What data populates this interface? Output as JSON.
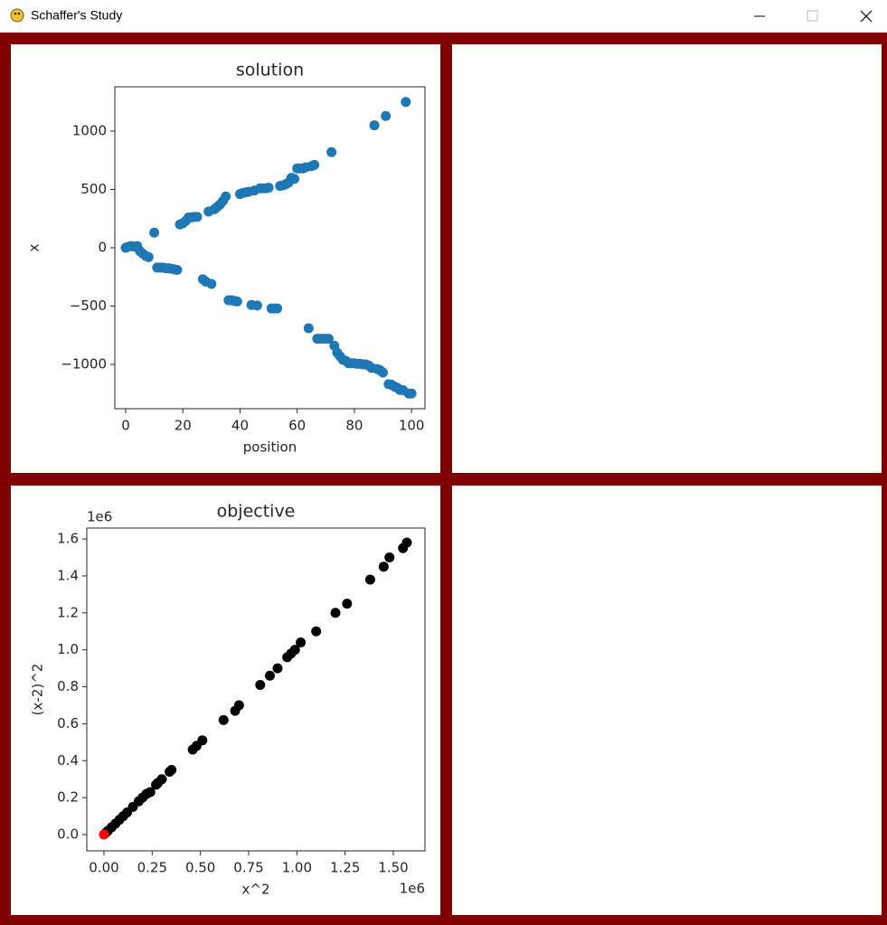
{
  "window_title": "Schaffer's Study",
  "chart_data": [
    {
      "type": "scatter",
      "title": "solution",
      "x_label": "position",
      "y_label": "x",
      "color": "#1f77b4",
      "xlim": [
        -3.8,
        104.7
      ],
      "ylim": [
        -1380,
        1380
      ],
      "xticks": [
        0,
        20,
        40,
        60,
        80,
        100
      ],
      "yticks": [
        {
          "value": -1000,
          "label": "−1000"
        },
        {
          "value": -500,
          "label": "−500"
        },
        0,
        500,
        1000
      ],
      "x": [
        0,
        1,
        2,
        3,
        4,
        5,
        6,
        7,
        8,
        10,
        11,
        12,
        13,
        14,
        15,
        16,
        17,
        18,
        19,
        20,
        21,
        22,
        23,
        24,
        25,
        27,
        28,
        29,
        30,
        31,
        32,
        33,
        34,
        35,
        36,
        37,
        38,
        39,
        40,
        41,
        42,
        43,
        44,
        45,
        46,
        47,
        48,
        49,
        50,
        51,
        52,
        53,
        54,
        55,
        56,
        57,
        58,
        59,
        60,
        61,
        62,
        63,
        64,
        65,
        66,
        67,
        68,
        69,
        70,
        71,
        72,
        73,
        74,
        75,
        76,
        77,
        78,
        79,
        80,
        81,
        82,
        83,
        84,
        85,
        86,
        87,
        88,
        89,
        90,
        91,
        92,
        93,
        94,
        95,
        96,
        97,
        98,
        99,
        100
      ],
      "values": [
        0,
        10,
        15,
        10,
        15,
        -30,
        -50,
        -70,
        -80,
        130,
        -170,
        -170,
        -170,
        -175,
        -175,
        -180,
        -185,
        -190,
        200,
        210,
        230,
        260,
        260,
        265,
        265,
        -270,
        -290,
        310,
        -310,
        330,
        350,
        370,
        400,
        440,
        -450,
        -450,
        -455,
        -460,
        460,
        470,
        475,
        480,
        -490,
        490,
        -495,
        510,
        510,
        510,
        515,
        -520,
        -520,
        -520,
        530,
        535,
        545,
        560,
        600,
        590,
        680,
        680,
        680,
        690,
        -690,
        700,
        710,
        -780,
        -780,
        -780,
        -780,
        -780,
        820,
        -840,
        -900,
        -930,
        -960,
        -970,
        -990,
        -990,
        -990,
        -995,
        -995,
        -1000,
        -1000,
        -1010,
        -1030,
        1050,
        -1040,
        -1050,
        -1070,
        1130,
        -1170,
        -1175,
        -1190,
        -1200,
        -1220,
        -1220,
        1250,
        -1250,
        -1250
      ]
    },
    {
      "type": "scatter",
      "title": "objective",
      "x_label": "x^2",
      "y_label": "(x-2)^2",
      "x_offset_label": "1e6",
      "y_offset_label": "1e6",
      "xlim": [
        -0.089,
        1.664
      ],
      "ylim": [
        -0.088,
        1.659
      ],
      "xticks": [
        {
          "value": 0,
          "label": "0.00"
        },
        0.25,
        {
          "value": 0.5,
          "label": "0.50"
        },
        0.75,
        {
          "value": 1,
          "label": "1.00"
        },
        1.25,
        {
          "value": 1.5,
          "label": "1.50"
        }
      ],
      "yticks": [
        {
          "value": 0,
          "label": "0.0"
        },
        0.2,
        0.4,
        0.6,
        0.8,
        {
          "value": 1,
          "label": "1.0"
        },
        1.2,
        1.4,
        1.6
      ],
      "series": [
        {
          "color": "#000000",
          "x": [
            0.01,
            0.02,
            0.04,
            0.06,
            0.08,
            0.1,
            0.12,
            0.15,
            0.18,
            0.2,
            0.22,
            0.24,
            0.27,
            0.28,
            0.3,
            0.34,
            0.35,
            0.46,
            0.48,
            0.51,
            0.62,
            0.68,
            0.7,
            0.81,
            0.86,
            0.9,
            0.95,
            0.97,
            0.99,
            1.02,
            1.1,
            1.2,
            1.26,
            1.38,
            1.45,
            1.48,
            1.55,
            1.57
          ],
          "values": [
            0.01,
            0.02,
            0.04,
            0.06,
            0.08,
            0.1,
            0.12,
            0.15,
            0.18,
            0.2,
            0.22,
            0.23,
            0.27,
            0.28,
            0.3,
            0.34,
            0.35,
            0.46,
            0.48,
            0.51,
            0.62,
            0.67,
            0.7,
            0.81,
            0.86,
            0.9,
            0.96,
            0.98,
            1.0,
            1.04,
            1.1,
            1.2,
            1.25,
            1.38,
            1.45,
            1.5,
            1.55,
            1.58
          ]
        },
        {
          "color": "#ff0000",
          "x": [
            0
          ],
          "values": [
            0
          ]
        }
      ]
    }
  ]
}
